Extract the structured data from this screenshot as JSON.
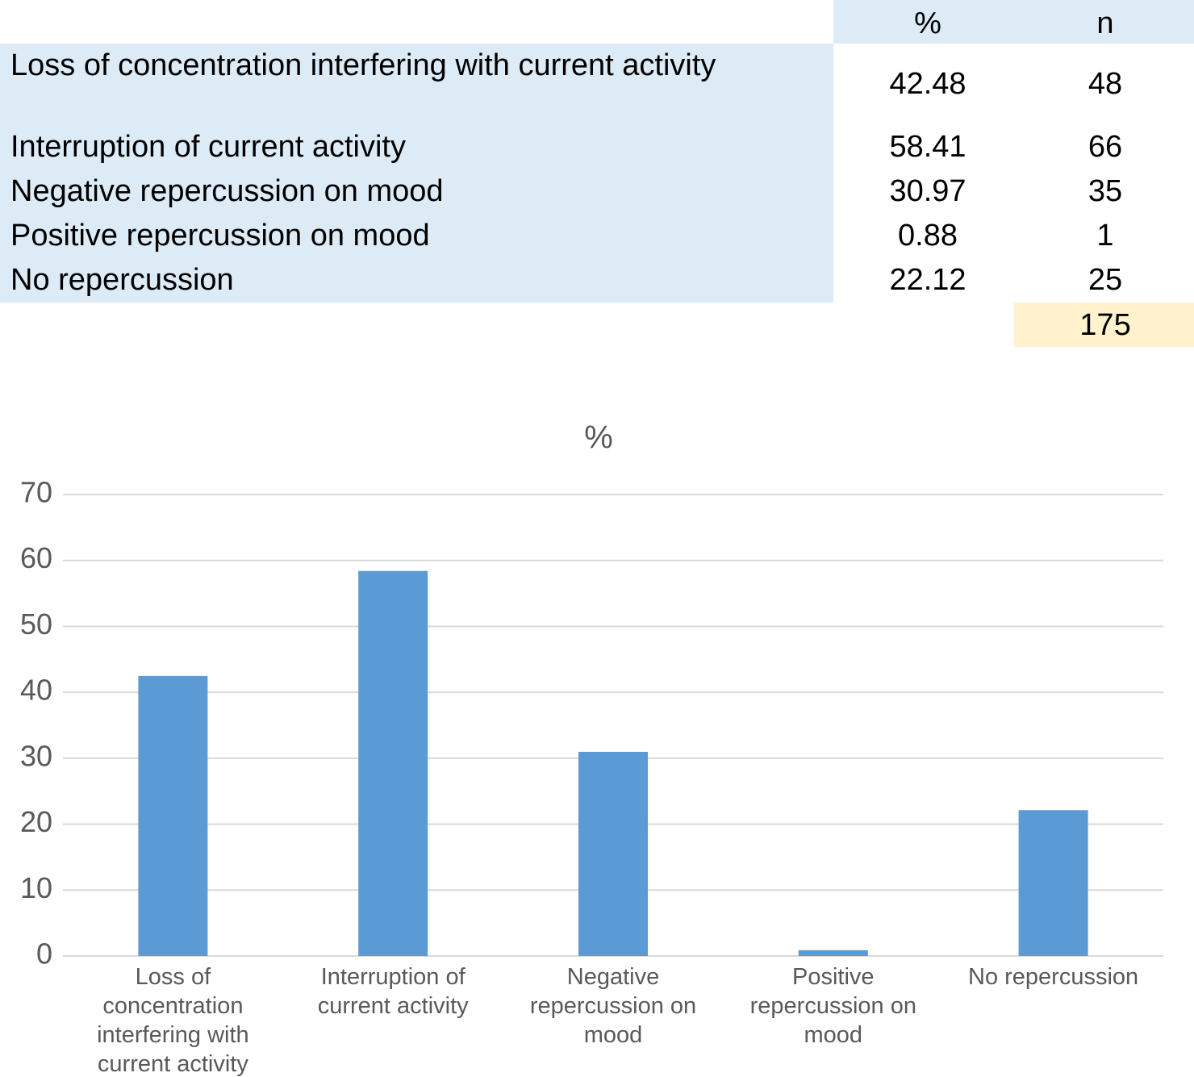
{
  "table": {
    "columns": [
      "%",
      "n"
    ],
    "rows": [
      {
        "label": "Loss of concentration interfering with current activity",
        "pct": 42.48,
        "n": 48
      },
      {
        "label": "Interruption of current activity",
        "pct": 58.41,
        "n": 66
      },
      {
        "label": "Negative repercussion on mood",
        "pct": 30.97,
        "n": 35
      },
      {
        "label": "Positive repercussion on mood",
        "pct": 0.88,
        "n": 1
      },
      {
        "label": "No repercussion",
        "pct": 22.12,
        "n": 25
      }
    ],
    "total": 175
  },
  "chart_data": {
    "type": "bar",
    "title": "%",
    "categories": [
      "Loss of concentration interfering with current activity",
      "Interruption of current activity",
      "Negative repercussion on mood",
      "Positive repercussion on mood",
      "No repercussion"
    ],
    "values": [
      42.48,
      58.41,
      30.97,
      0.88,
      22.12
    ],
    "color": "#5b9bd5",
    "ylim": [
      0,
      70
    ],
    "yticks": [
      0,
      10,
      20,
      30,
      40,
      50,
      60,
      70
    ],
    "grid": true
  }
}
